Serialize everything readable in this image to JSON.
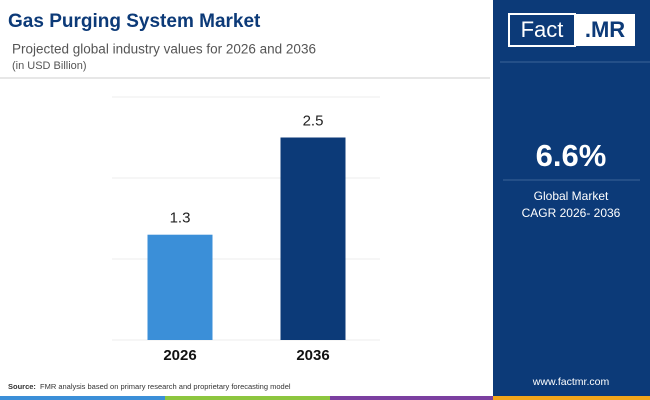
{
  "chart_data": {
    "type": "bar",
    "title": "Gas Purging System Market",
    "subtitle": "Projected global industry values for 2026 and 2036",
    "unit_note": "(in USD Billion)",
    "categories": [
      "2026",
      "2036"
    ],
    "values": [
      1.3,
      2.5
    ],
    "colors": [
      "#3b8fd8",
      "#0c3a78"
    ],
    "ylim": [
      0,
      3
    ],
    "yticks": [
      0,
      1,
      2,
      3
    ],
    "grid": true
  },
  "side_panel": {
    "logo_left": "Fact",
    "logo_right": ".MR",
    "cagr": "6.6%",
    "cagr_line1": "Global Market",
    "cagr_line2": "CAGR 2026- 2036",
    "website": "www.factmr.com"
  },
  "footer": {
    "source_label": "Source:",
    "source_text": "FMR analysis based on primary research and proprietary forecasting model"
  }
}
